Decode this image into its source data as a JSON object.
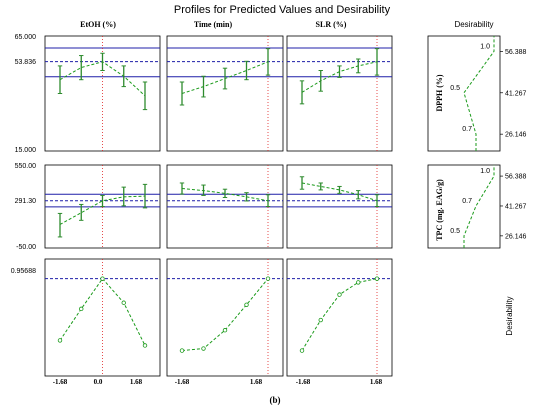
{
  "figure": {
    "title": "Profiles for Predicted Values and Desirability",
    "caption": "(b)",
    "desirability_header": "Desirability",
    "desirability_row_label": "Desirability",
    "column_headers": [
      "EtOH (%)",
      "Time (min)",
      "SLR (%)"
    ],
    "row_labels": [
      "DPPH (%)",
      "TPC (mg. EAG/g)"
    ],
    "x_tick_labels": [
      "-1.68",
      "0.0",
      "1.68"
    ],
    "y_ticks": {
      "dpph": [
        "65.000",
        "53.836",
        "15.000"
      ],
      "tpc": [
        "550.00",
        "291.30",
        "-50.00"
      ],
      "desir": [
        "0.95688"
      ]
    },
    "colors": {
      "curve": "#1a9a1a",
      "ci": "#2e8b2e",
      "band": "#1f1fa8",
      "dashed": "#1f1fa8",
      "current": "#e02020",
      "frame": "#000000"
    }
  },
  "chart_data": {
    "type": "line",
    "x_coded": [
      -1.68,
      -0.84,
      0.0,
      0.84,
      1.68
    ],
    "factors": [
      {
        "name": "EtOH (%)",
        "current_x": 0.0
      },
      {
        "name": "Time (min)",
        "current_x": 1.68
      },
      {
        "name": "SLR (%)",
        "current_x": 1.68
      }
    ],
    "dpph": {
      "ylim": [
        15,
        65
      ],
      "current": 53.836,
      "band": [
        47.3,
        59.8
      ],
      "profiles": [
        {
          "factor": "EtOH (%)",
          "y": [
            46.0,
            51.3,
            53.8,
            47.5,
            39.0
          ],
          "lo": [
            40.0,
            46.0,
            50.0,
            43.0,
            33.0
          ],
          "hi": [
            52.0,
            56.5,
            57.5,
            52.0,
            45.0
          ]
        },
        {
          "factor": "Time (min)",
          "y": [
            40.0,
            43.0,
            46.5,
            50.0,
            53.8
          ],
          "lo": [
            35.0,
            38.5,
            42.0,
            46.0,
            48.0
          ],
          "hi": [
            45.0,
            47.5,
            51.0,
            54.0,
            59.5
          ]
        },
        {
          "factor": "SLR (%)",
          "y": [
            40.5,
            45.5,
            49.5,
            52.0,
            53.8
          ],
          "lo": [
            35.5,
            41.0,
            47.0,
            49.0,
            48.0
          ],
          "hi": [
            45.5,
            50.0,
            52.0,
            55.0,
            59.5
          ]
        }
      ]
    },
    "tpc": {
      "ylim": [
        -50,
        550
      ],
      "current": 291.3,
      "band": [
        247.0,
        339.0
      ],
      "profiles": [
        {
          "factor": "EtOH (%)",
          "y": [
            120.0,
            205.0,
            291.3,
            320.0,
            325.0
          ],
          "lo": [
            30.0,
            150.0,
            250.0,
            255.0,
            240.0
          ],
          "hi": [
            200.0,
            265.0,
            330.0,
            390.0,
            410.0
          ]
        },
        {
          "factor": "Time (min)",
          "y": [
            380.0,
            365.0,
            345.0,
            320.0,
            291.3
          ],
          "lo": [
            340.0,
            330.0,
            315.0,
            290.0,
            250.0
          ],
          "hi": [
            420.0,
            405.0,
            375.0,
            350.0,
            335.0
          ]
        },
        {
          "factor": "SLR (%)",
          "y": [
            420.0,
            395.0,
            370.0,
            335.0,
            291.3
          ],
          "lo": [
            375.0,
            370.0,
            345.0,
            305.0,
            250.0
          ],
          "hi": [
            465.0,
            420.0,
            395.0,
            365.0,
            335.0
          ]
        }
      ]
    },
    "desirability": {
      "ylim": [
        0,
        1.15
      ],
      "current": 0.95688,
      "profiles": [
        {
          "factor": "EtOH (%)",
          "y": [
            0.35,
            0.66,
            0.95688,
            0.72,
            0.3
          ]
        },
        {
          "factor": "Time (min)",
          "y": [
            0.25,
            0.27,
            0.45,
            0.7,
            0.95688
          ]
        },
        {
          "factor": "SLR (%)",
          "y": [
            0.25,
            0.55,
            0.8,
            0.92,
            0.95688
          ]
        }
      ]
    },
    "desirability_functions": [
      {
        "response": "DPPH (%)",
        "levels": [
          "26.146",
          "41.267",
          "56.388"
        ],
        "labels": [
          "0.7",
          "0.5",
          "1.0"
        ],
        "d": [
          0.7,
          0.5,
          1.0
        ]
      },
      {
        "response": "TPC (mg. EAG/g)",
        "levels": [
          "26.146",
          "41.267",
          "56.388"
        ],
        "labels": [
          "0.5",
          "0.7",
          "1.0"
        ],
        "d": [
          0.5,
          0.7,
          1.0
        ]
      }
    ]
  }
}
